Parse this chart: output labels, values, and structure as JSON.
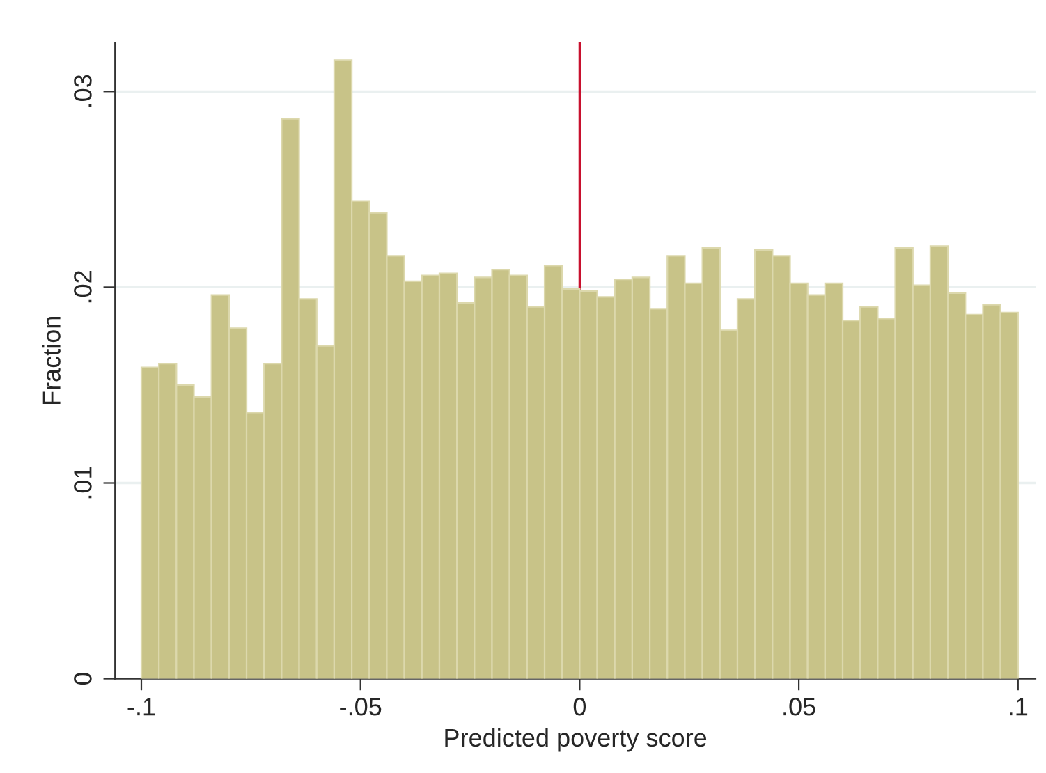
{
  "chart_data": {
    "type": "histogram",
    "xlabel": "Predicted poverty score",
    "ylabel": "Fraction",
    "bins": [
      -0.1,
      -0.096,
      -0.092,
      -0.088,
      -0.084,
      -0.08,
      -0.076,
      -0.072,
      -0.068,
      -0.064,
      -0.06,
      -0.056,
      -0.052,
      -0.048,
      -0.044,
      -0.04,
      -0.036,
      -0.032,
      -0.028,
      -0.024,
      -0.02,
      -0.016,
      -0.012,
      -0.008,
      -0.004,
      0,
      0.004,
      0.008,
      0.012,
      0.016,
      0.02,
      0.024,
      0.028,
      0.032,
      0.036,
      0.04,
      0.044,
      0.048,
      0.052,
      0.056,
      0.06,
      0.064,
      0.068,
      0.072,
      0.076,
      0.08,
      0.084,
      0.088,
      0.092,
      0.096,
      0.1
    ],
    "values": [
      0.0159,
      0.0161,
      0.015,
      0.0144,
      0.0196,
      0.0179,
      0.0136,
      0.0161,
      0.0286,
      0.0194,
      0.017,
      0.0316,
      0.0244,
      0.0238,
      0.0216,
      0.0203,
      0.0206,
      0.0207,
      0.0192,
      0.0205,
      0.0209,
      0.0206,
      0.019,
      0.0211,
      0.0199,
      0.0198,
      0.0195,
      0.0204,
      0.0205,
      0.0189,
      0.0216,
      0.0202,
      0.022,
      0.0178,
      0.0194,
      0.0219,
      0.0216,
      0.0202,
      0.0196,
      0.0202,
      0.0183,
      0.019,
      0.0184,
      0.022,
      0.0201,
      0.0221,
      0.0197,
      0.0186,
      0.0191,
      0.0187
    ],
    "color": "#c8c388",
    "xlim": [
      -0.106,
      0.104
    ],
    "ylim": [
      0,
      0.0325
    ],
    "xticks": [
      {
        "value": -0.1,
        "label": "-.1"
      },
      {
        "value": -0.05,
        "label": "-.05"
      },
      0,
      {
        "value": 0.05,
        "label": ".05"
      },
      {
        "value": 0.1,
        "label": ".1"
      }
    ],
    "yticks": [
      0,
      {
        "value": 0.01,
        "label": ".01"
      },
      {
        "value": 0.02,
        "label": ".02"
      },
      {
        "value": 0.03,
        "label": ".03"
      }
    ],
    "grid": "y",
    "ref_lines": [
      {
        "axis": "x",
        "value": 0,
        "color": "#c8102e"
      }
    ]
  }
}
